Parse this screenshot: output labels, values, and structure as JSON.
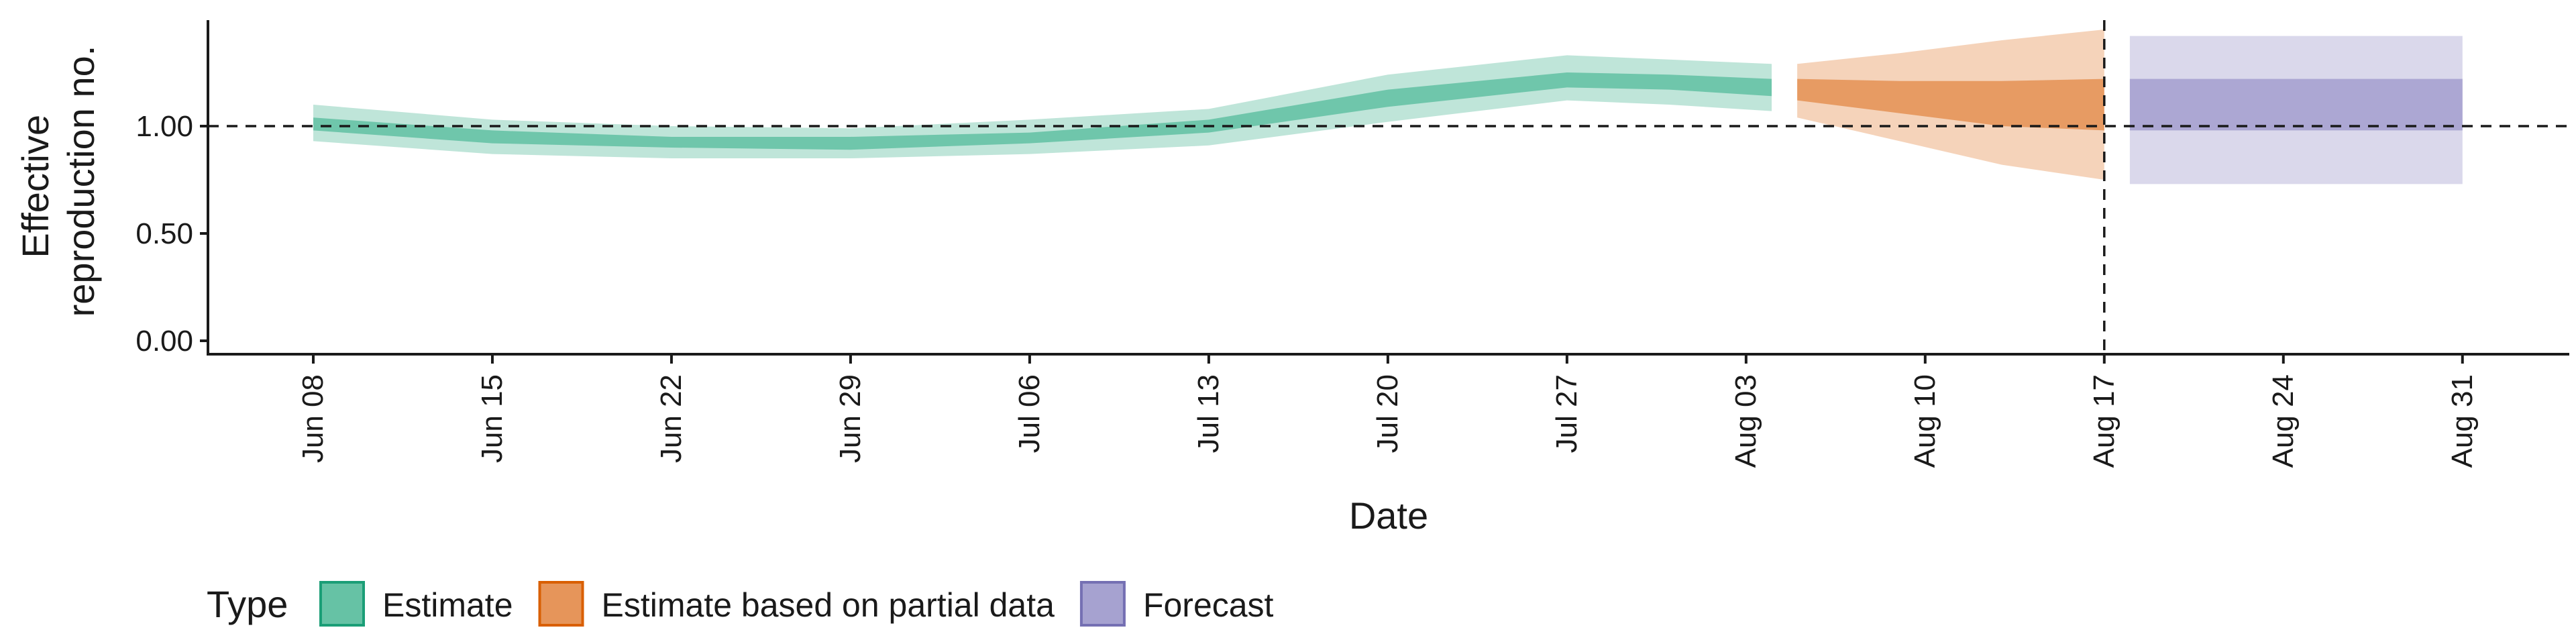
{
  "chart_data": {
    "type": "area",
    "xlabel": "Date",
    "ylabel_lines": [
      "Effective",
      "reproduction no."
    ],
    "ylim": [
      0,
      1.5
    ],
    "y_ticks": [
      {
        "value": 0.0,
        "label": "0.00"
      },
      {
        "value": 0.5,
        "label": "0.50"
      },
      {
        "value": 1.0,
        "label": "1.00"
      }
    ],
    "x_ticks": [
      {
        "day": 0,
        "label": "Jun 08"
      },
      {
        "day": 7,
        "label": "Jun 15"
      },
      {
        "day": 14,
        "label": "Jun 22"
      },
      {
        "day": 21,
        "label": "Jun 29"
      },
      {
        "day": 28,
        "label": "Jul 06"
      },
      {
        "day": 35,
        "label": "Jul 13"
      },
      {
        "day": 42,
        "label": "Jul 20"
      },
      {
        "day": 49,
        "label": "Jul 27"
      },
      {
        "day": 56,
        "label": "Aug 03"
      },
      {
        "day": 63,
        "label": "Aug 10"
      },
      {
        "day": 70,
        "label": "Aug 17"
      },
      {
        "day": 77,
        "label": "Aug 24"
      },
      {
        "day": 84,
        "label": "Aug 31"
      }
    ],
    "reference_hline": 1.0,
    "reference_vline_day": 70,
    "legend_title": "Type",
    "series": [
      {
        "name": "Estimate",
        "fill": "#66c2a5",
        "stroke": "#1b9e77",
        "points": [
          {
            "day": 0,
            "lo90": 0.93,
            "lo50": 0.98,
            "hi50": 1.04,
            "hi90": 1.1
          },
          {
            "day": 7,
            "lo90": 0.87,
            "lo50": 0.92,
            "hi50": 0.98,
            "hi90": 1.03
          },
          {
            "day": 14,
            "lo90": 0.85,
            "lo50": 0.9,
            "hi50": 0.95,
            "hi90": 1.0
          },
          {
            "day": 21,
            "lo90": 0.85,
            "lo50": 0.89,
            "hi50": 0.95,
            "hi90": 0.99
          },
          {
            "day": 28,
            "lo90": 0.87,
            "lo50": 0.92,
            "hi50": 0.97,
            "hi90": 1.03
          },
          {
            "day": 35,
            "lo90": 0.91,
            "lo50": 0.97,
            "hi50": 1.03,
            "hi90": 1.08
          },
          {
            "day": 42,
            "lo90": 1.02,
            "lo50": 1.09,
            "hi50": 1.17,
            "hi90": 1.24
          },
          {
            "day": 49,
            "lo90": 1.12,
            "lo50": 1.18,
            "hi50": 1.25,
            "hi90": 1.33
          },
          {
            "day": 53,
            "lo90": 1.1,
            "lo50": 1.17,
            "hi50": 1.24,
            "hi90": 1.31
          },
          {
            "day": 57,
            "lo90": 1.07,
            "lo50": 1.14,
            "hi50": 1.22,
            "hi90": 1.29
          }
        ]
      },
      {
        "name": "Estimate based on partial data",
        "fill": "#e6955a",
        "stroke": "#d95f02",
        "points": [
          {
            "day": 58,
            "lo90": 1.04,
            "lo50": 1.12,
            "hi50": 1.22,
            "hi90": 1.29
          },
          {
            "day": 62,
            "lo90": 0.93,
            "lo50": 1.06,
            "hi50": 1.21,
            "hi90": 1.34
          },
          {
            "day": 66,
            "lo90": 0.82,
            "lo50": 1.0,
            "hi50": 1.21,
            "hi90": 1.4
          },
          {
            "day": 70,
            "lo90": 0.75,
            "lo50": 0.98,
            "hi50": 1.22,
            "hi90": 1.45
          }
        ]
      },
      {
        "name": "Forecast",
        "fill": "#a6a2d0",
        "stroke": "#7570b3",
        "points": [
          {
            "day": 71,
            "lo90": 0.73,
            "lo50": 0.98,
            "hi50": 1.22,
            "hi90": 1.42
          },
          {
            "day": 84,
            "lo90": 0.73,
            "lo50": 0.98,
            "hi50": 1.22,
            "hi90": 1.42
          }
        ]
      }
    ]
  }
}
